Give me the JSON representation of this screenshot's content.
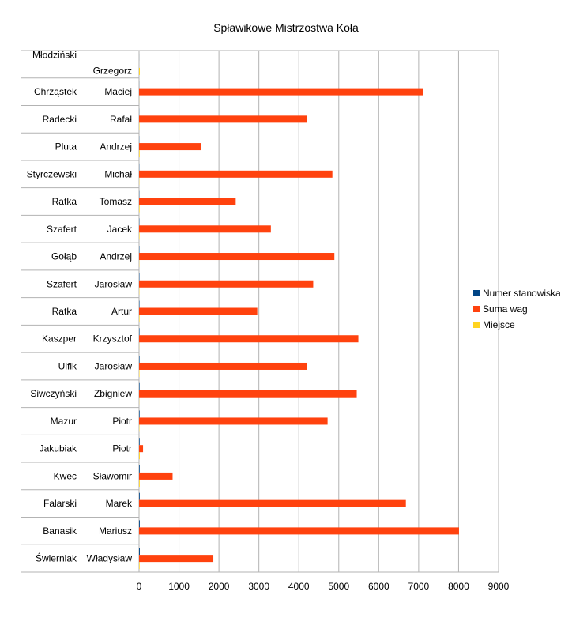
{
  "chart_data": {
    "type": "bar",
    "orientation": "horizontal",
    "title": "Spławikowe Mistrzostwa Koła",
    "categories": [
      {
        "surname": "Młodziński",
        "first_name": "Grzegorz"
      },
      {
        "surname": "Chrząstek",
        "first_name": "Maciej"
      },
      {
        "surname": "Radecki",
        "first_name": "Rafał"
      },
      {
        "surname": "Pluta",
        "first_name": "Andrzej"
      },
      {
        "surname": "Styrczewski",
        "first_name": "Michał"
      },
      {
        "surname": "Ratka",
        "first_name": "Tomasz"
      },
      {
        "surname": "Szafert",
        "first_name": "Jacek"
      },
      {
        "surname": "Gołąb",
        "first_name": "Andrzej"
      },
      {
        "surname": "Szafert",
        "first_name": "Jarosław"
      },
      {
        "surname": "Ratka",
        "first_name": "Artur"
      },
      {
        "surname": "Kaszper",
        "first_name": "Krzysztof"
      },
      {
        "surname": "Ulfik",
        "first_name": "Jarosław"
      },
      {
        "surname": "Siwczyński",
        "first_name": "Zbigniew"
      },
      {
        "surname": "Mazur",
        "first_name": "Piotr"
      },
      {
        "surname": "Jakubiak",
        "first_name": "Piotr"
      },
      {
        "surname": "Kwec",
        "first_name": "Sławomir"
      },
      {
        "surname": "Falarski",
        "first_name": "Marek"
      },
      {
        "surname": "Banasik",
        "first_name": "Mariusz"
      },
      {
        "surname": "Świerniak",
        "first_name": "Władysław"
      }
    ],
    "series": [
      {
        "name": "Numer stanowiska",
        "color": "#004586",
        "values": [
          1,
          2,
          3,
          4,
          5,
          6,
          7,
          8,
          9,
          10,
          11,
          12,
          13,
          14,
          15,
          16,
          17,
          18,
          19
        ]
      },
      {
        "name": "Suma wag",
        "color": "#ff420e",
        "values": [
          0,
          7110,
          4200,
          1560,
          4840,
          2420,
          3300,
          4890,
          4360,
          2960,
          5490,
          4200,
          5450,
          4720,
          100,
          840,
          6680,
          8010,
          1860
        ]
      },
      {
        "name": "Miejsce",
        "color": "#ffd320",
        "values": [
          19,
          2,
          9,
          15,
          6,
          13,
          11,
          5,
          7,
          12,
          3,
          10,
          4,
          8,
          18,
          17,
          1,
          1,
          14
        ]
      }
    ],
    "x_ticks": [
      "0",
      "1000",
      "2000",
      "3000",
      "4000",
      "5000",
      "6000",
      "7000",
      "8000",
      "9000"
    ],
    "xlim": [
      0,
      9000
    ],
    "grid": true,
    "legend_position": "right"
  }
}
